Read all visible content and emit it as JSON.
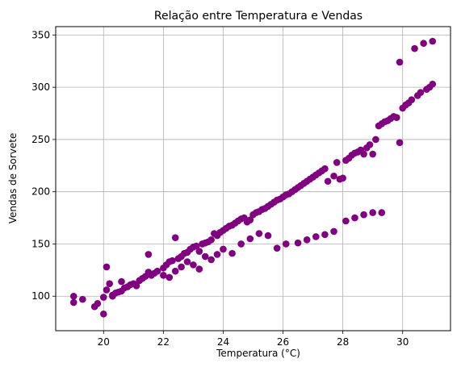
{
  "chart_data": {
    "type": "scatter",
    "title": "Relação entre Temperatura e Vendas",
    "xlabel": "Temperatura (°C)",
    "ylabel": "Vendas de Sorvete",
    "xlim": [
      18.4,
      31.6
    ],
    "ylim": [
      67,
      358
    ],
    "xticks": [
      20,
      22,
      24,
      26,
      28,
      30
    ],
    "yticks": [
      100,
      150,
      200,
      250,
      300,
      350
    ],
    "grid": true,
    "marker_color": "#800080",
    "series": [
      {
        "x": [
          19.0,
          19.0,
          19.3,
          19.7,
          19.8,
          20.0,
          20.0,
          20.1,
          20.1,
          20.2,
          20.3,
          20.3,
          20.4,
          20.5,
          20.6,
          20.6,
          20.7,
          20.8,
          20.9,
          21.0,
          21.1,
          21.2,
          21.3,
          21.4,
          21.5,
          21.5,
          21.6,
          21.7,
          21.8,
          22.0,
          22.1,
          22.2,
          22.3,
          22.4,
          22.5,
          22.6,
          22.7,
          22.8,
          22.9,
          23.0,
          23.1,
          23.2,
          23.3,
          23.4,
          23.5,
          23.6,
          23.7,
          23.8,
          23.9,
          24.0,
          24.1,
          24.2,
          24.3,
          24.4,
          24.5,
          24.6,
          24.7,
          24.8,
          24.9,
          25.0,
          25.1,
          25.2,
          25.3,
          25.4,
          25.5,
          25.6,
          25.7,
          25.8,
          25.9,
          26.0,
          26.1,
          26.2,
          26.3,
          26.4,
          26.5,
          26.6,
          26.7,
          26.8,
          26.9,
          27.0,
          27.1,
          27.2,
          27.3,
          27.4,
          27.5,
          27.7,
          27.8,
          27.9,
          28.0,
          28.1,
          28.2,
          28.3,
          28.4,
          28.5,
          28.6,
          28.7,
          28.8,
          28.9,
          29.0,
          29.1,
          29.2,
          29.3,
          29.4,
          29.5,
          29.6,
          29.7,
          29.8,
          29.9,
          30.0,
          30.1,
          30.2,
          30.3,
          30.5,
          30.6,
          30.8,
          30.9,
          31.0
        ],
        "y": [
          100,
          94,
          97,
          90,
          93,
          83,
          99,
          106,
          128,
          112,
          100,
          101,
          103,
          104,
          105,
          114,
          108,
          109,
          111,
          112,
          110,
          115,
          117,
          119,
          123,
          140,
          120,
          122,
          124,
          127,
          130,
          133,
          134,
          156,
          136,
          138,
          141,
          142,
          145,
          147,
          148,
          143,
          150,
          151,
          152,
          154,
          160,
          158,
          161,
          163,
          165,
          167,
          168,
          170,
          172,
          174,
          175,
          171,
          173,
          178,
          180,
          181,
          183,
          184,
          186,
          188,
          190,
          192,
          193,
          195,
          197,
          198,
          200,
          202,
          204,
          206,
          208,
          210,
          212,
          214,
          216,
          218,
          220,
          222,
          210,
          215,
          228,
          212,
          213,
          230,
          232,
          235,
          237,
          238,
          240,
          236,
          242,
          245,
          236,
          250,
          263,
          265,
          267,
          268,
          270,
          272,
          271,
          247,
          280,
          283,
          285,
          288,
          292,
          295,
          298,
          300,
          303
        ],
        "x2": [
          22.0,
          22.2,
          22.4,
          22.6,
          22.8,
          23.0,
          23.2,
          23.4,
          23.6,
          23.8,
          24.0,
          24.3,
          24.6,
          24.9,
          25.2,
          25.5,
          25.8,
          26.1,
          26.5,
          26.8,
          27.1,
          27.4,
          27.7,
          28.1,
          28.4,
          28.7,
          29.0,
          29.3,
          29.9,
          30.4,
          30.7,
          31.0
        ],
        "y2": [
          120,
          118,
          124,
          128,
          133,
          130,
          126,
          138,
          135,
          140,
          145,
          141,
          150,
          155,
          160,
          158,
          146,
          150,
          151,
          154,
          157,
          159,
          162,
          172,
          175,
          178,
          180,
          180,
          324,
          337,
          342,
          344
        ]
      }
    ]
  }
}
